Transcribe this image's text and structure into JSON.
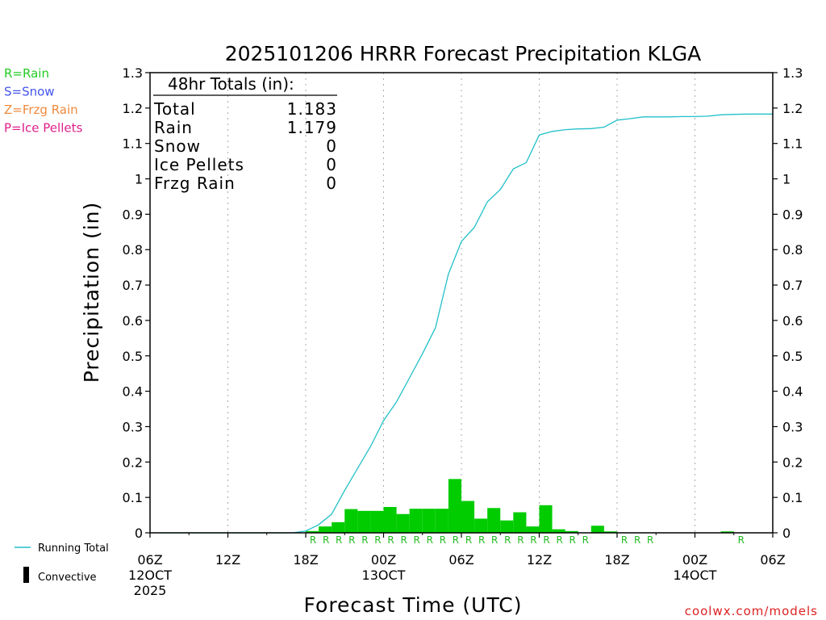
{
  "chart_data": {
    "type": "bar",
    "title": "2025101206 HRRR Forecast Precipitation KLGA",
    "xlabel": "Forecast Time (UTC)",
    "ylabel": "Precipitation (in)",
    "ylim": [
      0,
      1.3
    ],
    "xlim_hours": [
      0,
      48
    ],
    "y_ticks": [
      0,
      0.1,
      0.2,
      0.3,
      0.4,
      0.5,
      0.6,
      0.7,
      0.8,
      0.9,
      1,
      1.1,
      1.2,
      1.3
    ],
    "y_tick_labels": [
      "0",
      "0.1",
      "0.2",
      "0.3",
      "0.4",
      "0.5",
      "0.6",
      "0.7",
      "0.8",
      "0.9",
      "1",
      "1.1",
      "1.2",
      "1.3"
    ],
    "x_ticks": [
      {
        "hour": 0,
        "lines": [
          "06Z",
          "12OCT",
          "2025"
        ]
      },
      {
        "hour": 6,
        "lines": [
          "12Z"
        ]
      },
      {
        "hour": 12,
        "lines": [
          "18Z"
        ]
      },
      {
        "hour": 18,
        "lines": [
          "00Z",
          "13OCT"
        ]
      },
      {
        "hour": 24,
        "lines": [
          "06Z"
        ]
      },
      {
        "hour": 30,
        "lines": [
          "12Z"
        ]
      },
      {
        "hour": 36,
        "lines": [
          "18Z"
        ]
      },
      {
        "hour": 42,
        "lines": [
          "00Z",
          "14OCT"
        ]
      },
      {
        "hour": 48,
        "lines": [
          "06Z"
        ]
      }
    ],
    "hourly_precip_hours": [
      12,
      13,
      14,
      15,
      16,
      17,
      18,
      19,
      20,
      21,
      22,
      23,
      24,
      25,
      26,
      27,
      28,
      29,
      30,
      31,
      32,
      34,
      35,
      44
    ],
    "hourly_precip_values": [
      0.005,
      0.018,
      0.03,
      0.067,
      0.062,
      0.062,
      0.073,
      0.053,
      0.068,
      0.068,
      0.068,
      0.152,
      0.09,
      0.04,
      0.07,
      0.035,
      0.058,
      0.018,
      0.078,
      0.01,
      0.005,
      0.02,
      0.004,
      0.004
    ],
    "running_total_hours": [
      11,
      12,
      13,
      14,
      15,
      16,
      17,
      18,
      19,
      20,
      21,
      22,
      23,
      24,
      25,
      26,
      27,
      28,
      29,
      30,
      31,
      32,
      33,
      34,
      35,
      36,
      37,
      38,
      39,
      40,
      41,
      42,
      43,
      44,
      45,
      46,
      47,
      48
    ],
    "running_total_values": [
      0,
      0.005,
      0.023,
      0.053,
      0.12,
      0.182,
      0.244,
      0.317,
      0.37,
      0.438,
      0.506,
      0.579,
      0.731,
      0.823,
      0.863,
      0.935,
      0.97,
      1.028,
      1.046,
      1.124,
      1.134,
      1.139,
      1.141,
      1.142,
      1.146,
      1.166,
      1.17,
      1.175,
      1.175,
      1.175,
      1.176,
      1.176,
      1.177,
      1.181,
      1.182,
      1.183,
      1.183,
      1.183
    ],
    "ptype_hours": [
      12,
      13,
      14,
      15,
      16,
      17,
      18,
      19,
      20,
      21,
      22,
      23,
      24,
      25,
      26,
      27,
      28,
      29,
      30,
      31,
      32,
      33,
      36,
      37,
      38,
      45
    ],
    "ptype_letter": "R",
    "totals_box": {
      "header": "48hr Totals (in):",
      "rows": [
        {
          "label": "Total",
          "value": "1.183"
        },
        {
          "label": "Rain",
          "value": "1.179"
        },
        {
          "label": "Snow",
          "value": "0"
        },
        {
          "label": "Ice Pellets",
          "value": "0"
        },
        {
          "label": "Frzg Rain",
          "value": "0"
        }
      ]
    },
    "ptype_legend": [
      {
        "text": "R=Rain",
        "color": "#22cc22"
      },
      {
        "text": "S=Snow",
        "color": "#4455ee"
      },
      {
        "text": "Z=Frzg Rain",
        "color": "#f08a3c"
      },
      {
        "text": "P=Ice Pellets",
        "color": "#e0208a"
      }
    ],
    "legend": {
      "running_total": "Running Total",
      "convective": "Convective"
    },
    "credit": "coolwx.com/models",
    "colors": {
      "bar": "#00cc00",
      "line": "#22c0c8",
      "ptype": "#22bb22",
      "credit": "#dd2222",
      "grid": "#aaaaaa"
    }
  }
}
